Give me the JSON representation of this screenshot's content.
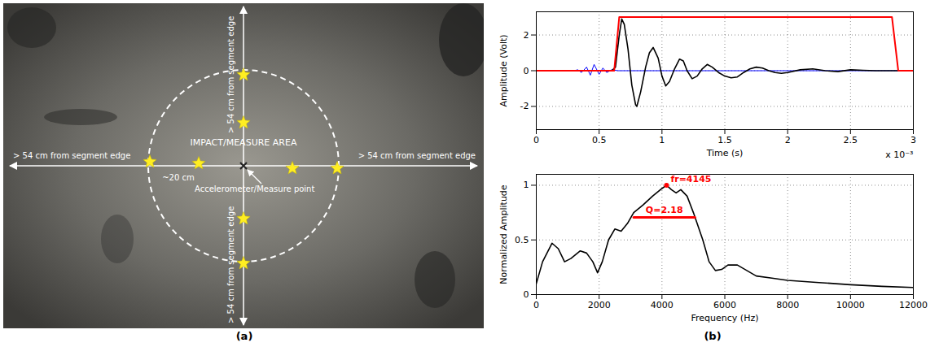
{
  "photo_panel": {
    "label": "(a)",
    "edge_text_left": "> 54 cm from segment edge",
    "edge_text_right": "> 54 cm from segment edge",
    "edge_text_top": "> 54 cm from segment edge",
    "edge_text_bottom": "> 54 cm from segment edge",
    "area_text": "IMPACT/MEASURE AREA",
    "radius_text": "~20 cm",
    "point_text": "Accelerometer/Measure point"
  },
  "chart_panel_label": "(b)",
  "chart_data": [
    {
      "type": "line",
      "xlabel": "Time (s)",
      "ylabel": "Amplitude (Volt)",
      "x_multiplier": "x 10⁻³",
      "xlim": [
        0,
        0.003
      ],
      "xticks": [
        0,
        {
          "value": 0.0005,
          "label": "0.5"
        },
        {
          "value": 0.001,
          "label": "1"
        },
        {
          "value": 0.0015,
          "label": "1.5"
        },
        {
          "value": 0.002,
          "label": "2"
        },
        {
          "value": 0.0025,
          "label": "2.5"
        },
        {
          "value": 0.003,
          "label": "3"
        }
      ],
      "ylim": [
        -3.3,
        3.3
      ],
      "yticks": [
        -2,
        0,
        2
      ],
      "grid": true,
      "series": [
        {
          "color": "#0000ff",
          "x": [
            0,
            0.0003,
            0.00033,
            0.00036,
            0.0004,
            0.00043,
            0.00046,
            0.0005,
            0.00053,
            0.00056,
            0.0006,
            0.00065,
            0.003
          ],
          "values": [
            0,
            0,
            0.05,
            -0.1,
            0.2,
            -0.25,
            0.35,
            -0.2,
            0.15,
            -0.1,
            0.05,
            0,
            0
          ]
        },
        {
          "color": "#000000",
          "x": [
            0,
            0.0006,
            0.00063,
            0.00066,
            0.00068,
            0.0007,
            0.00073,
            0.00076,
            0.00079,
            0.0008,
            0.00083,
            0.00087,
            0.0009,
            0.00093,
            0.00097,
            0.001,
            0.00103,
            0.00106,
            0.0011,
            0.00114,
            0.00117,
            0.0012,
            0.00124,
            0.00128,
            0.00132,
            0.00136,
            0.0014,
            0.00145,
            0.0015,
            0.00155,
            0.0016,
            0.00165,
            0.0017,
            0.00175,
            0.0018,
            0.00185,
            0.0019,
            0.00195,
            0.002,
            0.0021,
            0.0022,
            0.0023,
            0.0024,
            0.0025,
            0.0026,
            0.0027,
            0.0028,
            0.0029,
            0.003
          ],
          "values": [
            0,
            0,
            0.2,
            2.0,
            2.9,
            2.6,
            1.2,
            -0.8,
            -1.9,
            -2.0,
            -1.2,
            0.2,
            1.0,
            1.3,
            0.7,
            -0.3,
            -0.85,
            -0.6,
            0.1,
            0.65,
            0.55,
            0.0,
            -0.45,
            -0.3,
            0.1,
            0.35,
            0.2,
            -0.1,
            -0.3,
            -0.4,
            -0.35,
            -0.1,
            0.1,
            0.2,
            0.15,
            0.0,
            -0.1,
            -0.15,
            -0.1,
            0.05,
            0.1,
            0.0,
            -0.05,
            0.05,
            0.02,
            0.0,
            0.0,
            0.0,
            0.0
          ]
        },
        {
          "color": "#ff0000",
          "x": [
            0,
            0.00062,
            0.00066,
            0.00283,
            0.00288,
            0.003
          ],
          "values": [
            0,
            0,
            3,
            3,
            0,
            0
          ]
        }
      ]
    },
    {
      "type": "line",
      "xlabel": "Frequency (Hz)",
      "ylabel": "Normalized Amplitude",
      "xlim": [
        0,
        12000
      ],
      "xticks": [
        0,
        2000,
        4000,
        6000,
        8000,
        10000,
        12000
      ],
      "ylim": [
        0,
        1.1
      ],
      "yticks": [
        0,
        0.5,
        1
      ],
      "grid": true,
      "series": [
        {
          "color": "#000000",
          "x": [
            0,
            200,
            500,
            700,
            900,
            1100,
            1400,
            1600,
            1800,
            1950,
            2100,
            2300,
            2500,
            2700,
            2900,
            3100,
            3400,
            3700,
            4000,
            4145,
            4300,
            4450,
            4600,
            4800,
            5000,
            5300,
            5500,
            5700,
            5900,
            6100,
            6400,
            6700,
            7000,
            7500,
            8000,
            9000,
            10000,
            11000,
            12000
          ],
          "values": [
            0.1,
            0.3,
            0.47,
            0.42,
            0.3,
            0.33,
            0.4,
            0.38,
            0.3,
            0.2,
            0.3,
            0.5,
            0.6,
            0.58,
            0.65,
            0.75,
            0.82,
            0.9,
            0.97,
            1.0,
            0.96,
            0.93,
            0.96,
            0.9,
            0.75,
            0.5,
            0.3,
            0.22,
            0.23,
            0.27,
            0.27,
            0.22,
            0.17,
            0.15,
            0.13,
            0.11,
            0.09,
            0.075,
            0.065
          ]
        }
      ],
      "annotations": [
        {
          "text": "fr=4145",
          "x": 4145,
          "y": 1.0,
          "color": "#ff0000"
        },
        {
          "text": "Q=2.18",
          "x": [
            3100,
            5050
          ],
          "y": 0.707,
          "color": "#ff0000"
        }
      ]
    }
  ]
}
